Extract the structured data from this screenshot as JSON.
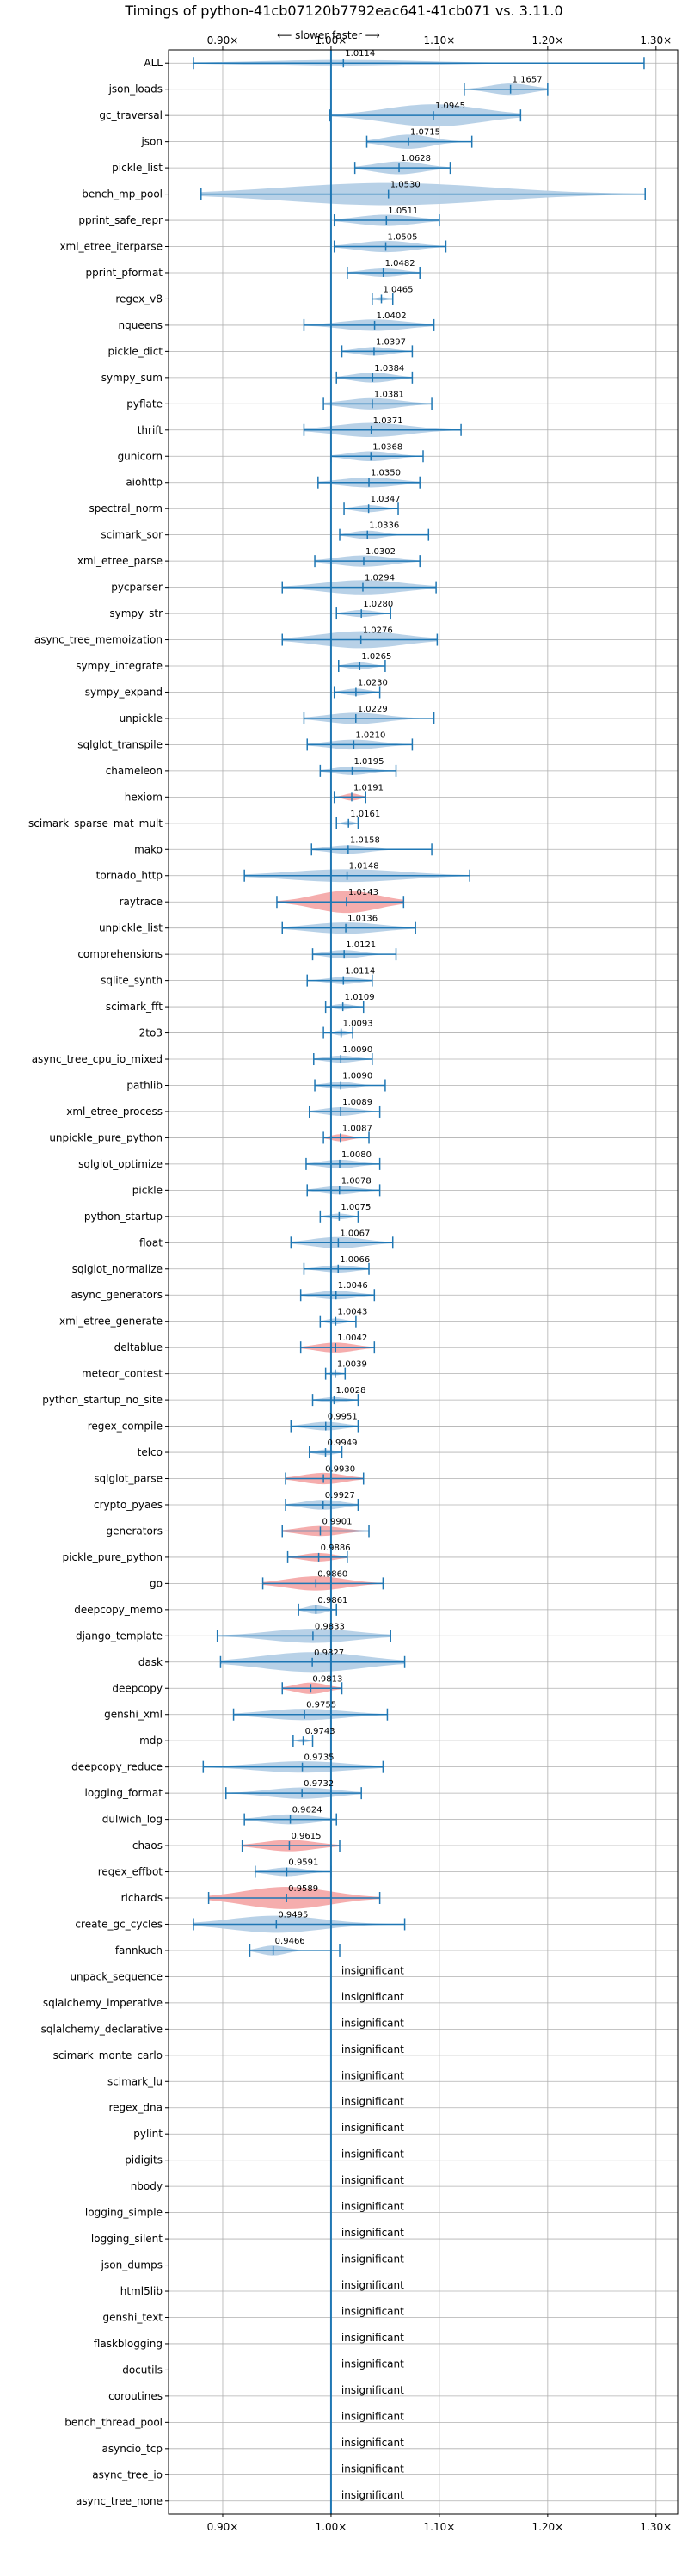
{
  "chart_data": {
    "type": "violin",
    "title": "Timings of python-41cb07120b7792eac641-41cb071 vs. 3.11.0",
    "direction_label": "⟵ slower    faster ⟶",
    "xlim": [
      0.85,
      1.32
    ],
    "xticks": [
      {
        "value": 0.9,
        "label": "0.90×"
      },
      {
        "value": 1.0,
        "label": "1.00×"
      },
      {
        "value": 1.1,
        "label": "1.10×"
      },
      {
        "value": 1.2,
        "label": "1.20×"
      },
      {
        "value": 1.3,
        "label": "1.30×"
      }
    ],
    "grid": true,
    "reference_line": 1.0,
    "insignificant_label": "insignificant",
    "colors": {
      "faster": "#b4cfe6",
      "slower": "#f4a9a9",
      "line": "#1f77b4",
      "grid": "#b0b0b0"
    },
    "benchmarks": [
      {
        "name": "ALL",
        "mean": 1.0114,
        "min": 0.873,
        "max": 1.289,
        "width": 0.022,
        "slower": false
      },
      {
        "name": "json_loads",
        "mean": 1.1657,
        "min": 1.123,
        "max": 1.2,
        "width": 0.04,
        "slower": false
      },
      {
        "name": "gc_traversal",
        "mean": 1.0945,
        "min": 0.999,
        "max": 1.175,
        "width": 0.1,
        "slower": false
      },
      {
        "name": "json",
        "mean": 1.0715,
        "min": 1.033,
        "max": 1.13,
        "width": 0.05,
        "slower": false
      },
      {
        "name": "pickle_list",
        "mean": 1.0628,
        "min": 1.022,
        "max": 1.11,
        "width": 0.045,
        "slower": false
      },
      {
        "name": "bench_mp_pool",
        "mean": 1.053,
        "min": 0.88,
        "max": 1.29,
        "width": 0.13,
        "slower": false
      },
      {
        "name": "pprint_safe_repr",
        "mean": 1.0511,
        "min": 1.003,
        "max": 1.1,
        "width": 0.04,
        "slower": false
      },
      {
        "name": "xml_etree_iterparse",
        "mean": 1.0505,
        "min": 1.003,
        "max": 1.106,
        "width": 0.04,
        "slower": false
      },
      {
        "name": "pprint_pformat",
        "mean": 1.0482,
        "min": 1.015,
        "max": 1.082,
        "width": 0.03,
        "slower": false
      },
      {
        "name": "regex_v8",
        "mean": 1.0465,
        "min": 1.038,
        "max": 1.057,
        "width": 0.012,
        "slower": false
      },
      {
        "name": "nqueens",
        "mean": 1.0402,
        "min": 0.975,
        "max": 1.095,
        "width": 0.04,
        "slower": false
      },
      {
        "name": "pickle_dict",
        "mean": 1.0397,
        "min": 1.01,
        "max": 1.075,
        "width": 0.03,
        "slower": false
      },
      {
        "name": "sympy_sum",
        "mean": 1.0384,
        "min": 1.005,
        "max": 1.075,
        "width": 0.035,
        "slower": false
      },
      {
        "name": "pyflate",
        "mean": 1.0381,
        "min": 0.993,
        "max": 1.093,
        "width": 0.04,
        "slower": false
      },
      {
        "name": "thrift",
        "mean": 1.0371,
        "min": 0.975,
        "max": 1.12,
        "width": 0.05,
        "slower": false
      },
      {
        "name": "gunicorn",
        "mean": 1.0368,
        "min": 1.0,
        "max": 1.085,
        "width": 0.035,
        "slower": false
      },
      {
        "name": "aiohttp",
        "mean": 1.035,
        "min": 0.988,
        "max": 1.082,
        "width": 0.035,
        "slower": false
      },
      {
        "name": "spectral_norm",
        "mean": 1.0347,
        "min": 1.012,
        "max": 1.062,
        "width": 0.025,
        "slower": false
      },
      {
        "name": "scimark_sor",
        "mean": 1.0336,
        "min": 1.008,
        "max": 1.09,
        "width": 0.03,
        "slower": false
      },
      {
        "name": "xml_etree_parse",
        "mean": 1.0302,
        "min": 0.985,
        "max": 1.082,
        "width": 0.04,
        "slower": false
      },
      {
        "name": "pycparser",
        "mean": 1.0294,
        "min": 0.955,
        "max": 1.097,
        "width": 0.05,
        "slower": false
      },
      {
        "name": "sympy_str",
        "mean": 1.028,
        "min": 1.005,
        "max": 1.055,
        "width": 0.025,
        "slower": false
      },
      {
        "name": "async_tree_memoization",
        "mean": 1.0276,
        "min": 0.955,
        "max": 1.098,
        "width": 0.06,
        "slower": false
      },
      {
        "name": "sympy_integrate",
        "mean": 1.0265,
        "min": 1.007,
        "max": 1.05,
        "width": 0.025,
        "slower": false
      },
      {
        "name": "sympy_expand",
        "mean": 1.023,
        "min": 1.003,
        "max": 1.045,
        "width": 0.025,
        "slower": false
      },
      {
        "name": "unpickle",
        "mean": 1.0229,
        "min": 0.975,
        "max": 1.095,
        "width": 0.04,
        "slower": false
      },
      {
        "name": "sqlglot_transpile",
        "mean": 1.021,
        "min": 0.978,
        "max": 1.075,
        "width": 0.035,
        "slower": false
      },
      {
        "name": "chameleon",
        "mean": 1.0195,
        "min": 0.99,
        "max": 1.06,
        "width": 0.03,
        "slower": false
      },
      {
        "name": "hexiom",
        "mean": 1.0191,
        "min": 1.003,
        "max": 1.032,
        "width": 0.025,
        "slower": true
      },
      {
        "name": "scimark_sparse_mat_mult",
        "mean": 1.0161,
        "min": 1.005,
        "max": 1.025,
        "width": 0.015,
        "slower": false
      },
      {
        "name": "mako",
        "mean": 1.0158,
        "min": 0.982,
        "max": 1.093,
        "width": 0.03,
        "slower": false
      },
      {
        "name": "tornado_http",
        "mean": 1.0148,
        "min": 0.92,
        "max": 1.128,
        "width": 0.045,
        "slower": false
      },
      {
        "name": "raytrace",
        "mean": 1.0143,
        "min": 0.95,
        "max": 1.067,
        "width": 0.08,
        "slower": true
      },
      {
        "name": "unpickle_list",
        "mean": 1.0136,
        "min": 0.955,
        "max": 1.078,
        "width": 0.04,
        "slower": false
      },
      {
        "name": "comprehensions",
        "mean": 1.0121,
        "min": 0.983,
        "max": 1.06,
        "width": 0.03,
        "slower": false
      },
      {
        "name": "sqlite_synth",
        "mean": 1.0114,
        "min": 0.978,
        "max": 1.038,
        "width": 0.025,
        "slower": false
      },
      {
        "name": "scimark_fft",
        "mean": 1.0109,
        "min": 0.995,
        "max": 1.03,
        "width": 0.02,
        "slower": false
      },
      {
        "name": "2to3",
        "mean": 1.0093,
        "min": 0.993,
        "max": 1.02,
        "width": 0.018,
        "slower": false
      },
      {
        "name": "async_tree_cpu_io_mixed",
        "mean": 1.009,
        "min": 0.984,
        "max": 1.038,
        "width": 0.025,
        "slower": false
      },
      {
        "name": "pathlib",
        "mean": 1.009,
        "min": 0.985,
        "max": 1.05,
        "width": 0.025,
        "slower": false
      },
      {
        "name": "xml_etree_process",
        "mean": 1.0089,
        "min": 0.98,
        "max": 1.045,
        "width": 0.03,
        "slower": false
      },
      {
        "name": "unpickle_pure_python",
        "mean": 1.0087,
        "min": 0.993,
        "max": 1.035,
        "width": 0.025,
        "slower": true
      },
      {
        "name": "sqlglot_optimize",
        "mean": 1.008,
        "min": 0.977,
        "max": 1.045,
        "width": 0.03,
        "slower": false
      },
      {
        "name": "pickle",
        "mean": 1.0078,
        "min": 0.978,
        "max": 1.045,
        "width": 0.03,
        "slower": false
      },
      {
        "name": "python_startup",
        "mean": 1.0075,
        "min": 0.99,
        "max": 1.025,
        "width": 0.02,
        "slower": false
      },
      {
        "name": "float",
        "mean": 1.0067,
        "min": 0.963,
        "max": 1.057,
        "width": 0.04,
        "slower": false
      },
      {
        "name": "sqlglot_normalize",
        "mean": 1.0066,
        "min": 0.975,
        "max": 1.035,
        "width": 0.025,
        "slower": false
      },
      {
        "name": "async_generators",
        "mean": 1.0046,
        "min": 0.972,
        "max": 1.04,
        "width": 0.03,
        "slower": false
      },
      {
        "name": "xml_etree_generate",
        "mean": 1.0043,
        "min": 0.99,
        "max": 1.023,
        "width": 0.02,
        "slower": false
      },
      {
        "name": "deltablue",
        "mean": 1.0042,
        "min": 0.972,
        "max": 1.04,
        "width": 0.035,
        "slower": true
      },
      {
        "name": "meteor_contest",
        "mean": 1.0039,
        "min": 0.995,
        "max": 1.013,
        "width": 0.012,
        "slower": false
      },
      {
        "name": "python_startup_no_site",
        "mean": 1.0028,
        "min": 0.983,
        "max": 1.025,
        "width": 0.02,
        "slower": false
      },
      {
        "name": "regex_compile",
        "mean": 0.9951,
        "min": 0.963,
        "max": 1.025,
        "width": 0.03,
        "slower": false
      },
      {
        "name": "telco",
        "mean": 0.9949,
        "min": 0.98,
        "max": 1.01,
        "width": 0.02,
        "slower": false
      },
      {
        "name": "sqlglot_parse",
        "mean": 0.993,
        "min": 0.958,
        "max": 1.03,
        "width": 0.04,
        "slower": true
      },
      {
        "name": "crypto_pyaes",
        "mean": 0.9927,
        "min": 0.958,
        "max": 1.025,
        "width": 0.035,
        "slower": false
      },
      {
        "name": "generators",
        "mean": 0.9901,
        "min": 0.955,
        "max": 1.035,
        "width": 0.035,
        "slower": true
      },
      {
        "name": "pickle_pure_python",
        "mean": 0.9886,
        "min": 0.96,
        "max": 1.015,
        "width": 0.03,
        "slower": true
      },
      {
        "name": "go",
        "mean": 0.986,
        "min": 0.937,
        "max": 1.048,
        "width": 0.05,
        "slower": true
      },
      {
        "name": "deepcopy_memo",
        "mean": 0.9861,
        "min": 0.97,
        "max": 1.005,
        "width": 0.03,
        "slower": false
      },
      {
        "name": "django_template",
        "mean": 0.9833,
        "min": 0.895,
        "max": 1.055,
        "width": 0.05,
        "slower": false
      },
      {
        "name": "dask",
        "mean": 0.9827,
        "min": 0.898,
        "max": 1.068,
        "width": 0.07,
        "slower": false
      },
      {
        "name": "deepcopy",
        "mean": 0.9813,
        "min": 0.955,
        "max": 1.01,
        "width": 0.04,
        "slower": true
      },
      {
        "name": "genshi_xml",
        "mean": 0.9755,
        "min": 0.91,
        "max": 1.052,
        "width": 0.04,
        "slower": false
      },
      {
        "name": "mdp",
        "mean": 0.9743,
        "min": 0.965,
        "max": 0.983,
        "width": 0.012,
        "slower": false
      },
      {
        "name": "deepcopy_reduce",
        "mean": 0.9735,
        "min": 0.882,
        "max": 1.048,
        "width": 0.04,
        "slower": false
      },
      {
        "name": "logging_format",
        "mean": 0.9732,
        "min": 0.903,
        "max": 1.028,
        "width": 0.04,
        "slower": false
      },
      {
        "name": "dulwich_log",
        "mean": 0.9624,
        "min": 0.92,
        "max": 1.005,
        "width": 0.035,
        "slower": false
      },
      {
        "name": "chaos",
        "mean": 0.9615,
        "min": 0.918,
        "max": 1.008,
        "width": 0.04,
        "slower": true
      },
      {
        "name": "regex_effbot",
        "mean": 0.9591,
        "min": 0.93,
        "max": 1.0,
        "width": 0.03,
        "slower": false
      },
      {
        "name": "richards",
        "mean": 0.9589,
        "min": 0.887,
        "max": 1.045,
        "width": 0.08,
        "slower": true
      },
      {
        "name": "create_gc_cycles",
        "mean": 0.9495,
        "min": 0.873,
        "max": 1.068,
        "width": 0.06,
        "slower": false
      },
      {
        "name": "fannkuch",
        "mean": 0.9466,
        "min": 0.925,
        "max": 1.008,
        "width": 0.035,
        "slower": false
      },
      {
        "name": "unpack_sequence",
        "insignificant": true
      },
      {
        "name": "sqlalchemy_imperative",
        "insignificant": true
      },
      {
        "name": "sqlalchemy_declarative",
        "insignificant": true
      },
      {
        "name": "scimark_monte_carlo",
        "insignificant": true
      },
      {
        "name": "scimark_lu",
        "insignificant": true
      },
      {
        "name": "regex_dna",
        "insignificant": true
      },
      {
        "name": "pylint",
        "insignificant": true
      },
      {
        "name": "pidigits",
        "insignificant": true
      },
      {
        "name": "nbody",
        "insignificant": true
      },
      {
        "name": "logging_simple",
        "insignificant": true
      },
      {
        "name": "logging_silent",
        "insignificant": true
      },
      {
        "name": "json_dumps",
        "insignificant": true
      },
      {
        "name": "html5lib",
        "insignificant": true
      },
      {
        "name": "genshi_text",
        "insignificant": true
      },
      {
        "name": "flaskblogging",
        "insignificant": true
      },
      {
        "name": "docutils",
        "insignificant": true
      },
      {
        "name": "coroutines",
        "insignificant": true
      },
      {
        "name": "bench_thread_pool",
        "insignificant": true
      },
      {
        "name": "asyncio_tcp",
        "insignificant": true
      },
      {
        "name": "async_tree_io",
        "insignificant": true
      },
      {
        "name": "async_tree_none",
        "insignificant": true
      }
    ]
  }
}
